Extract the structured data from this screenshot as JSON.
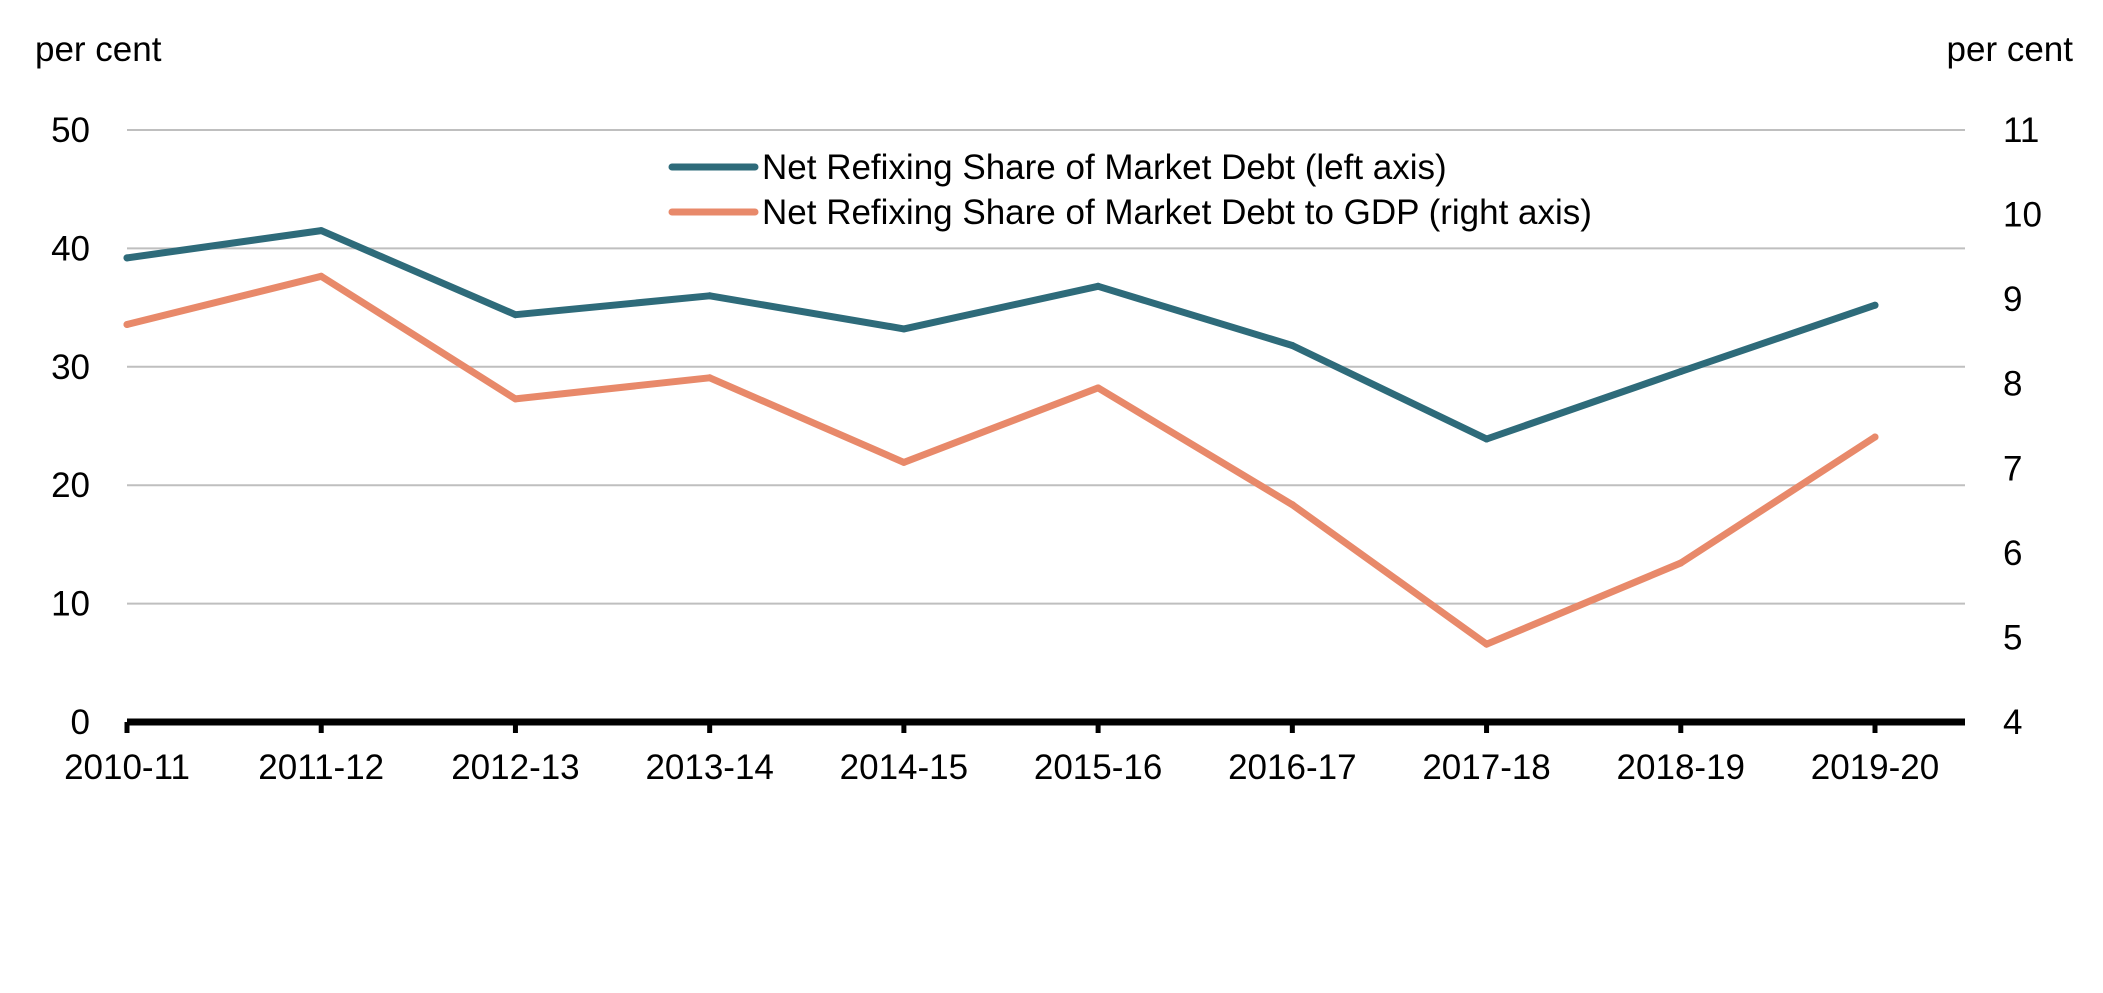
{
  "chart_data": {
    "type": "line",
    "title": "",
    "left_axis_label": "per cent",
    "right_axis_label": "per cent",
    "categories": [
      "2010-11",
      "2011-12",
      "2012-13",
      "2013-14",
      "2014-15",
      "2015-16",
      "2016-17",
      "2017-18",
      "2018-19",
      "2019-20"
    ],
    "left_ylim": [
      0,
      50
    ],
    "left_ticks": [
      0,
      10,
      20,
      30,
      40,
      50
    ],
    "right_ylim": [
      4,
      11
    ],
    "right_ticks": [
      4,
      5,
      6,
      7,
      8,
      9,
      10,
      11
    ],
    "grid": true,
    "legend_position": "top-center",
    "series": [
      {
        "name": "Net Refixing Share of Market Debt (left axis)",
        "axis": "left",
        "color": "#2e6b7a",
        "values": [
          39.2,
          41.5,
          34.4,
          36.0,
          33.2,
          36.8,
          31.8,
          23.9,
          29.6,
          35.2
        ]
      },
      {
        "name": "Net Refixing Share of Market Debt to GDP (right axis)",
        "axis": "right",
        "color": "#e8896a",
        "values": [
          8.7,
          9.27,
          7.82,
          8.07,
          7.07,
          7.95,
          6.57,
          4.92,
          5.88,
          7.37
        ]
      }
    ]
  }
}
